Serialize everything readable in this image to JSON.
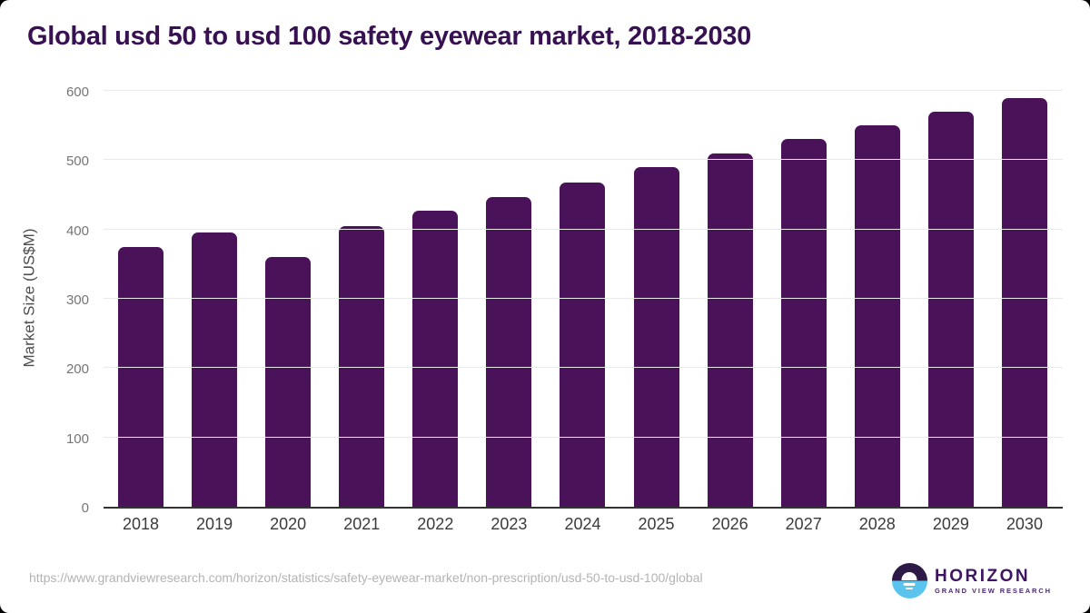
{
  "title": "Global usd 50 to usd 100 safety eyewear market, 2018-2030",
  "chart_data": {
    "type": "bar",
    "categories": [
      "2018",
      "2019",
      "2020",
      "2021",
      "2022",
      "2023",
      "2024",
      "2025",
      "2026",
      "2027",
      "2028",
      "2029",
      "2030"
    ],
    "values": [
      375,
      395,
      360,
      405,
      427,
      447,
      468,
      490,
      510,
      530,
      550,
      570,
      589
    ],
    "title": "Global usd 50 to usd 100 safety eyewear market, 2018-2030",
    "xlabel": "",
    "ylabel": "Market Size (US$M)",
    "ylim": [
      0,
      600
    ],
    "yticks": [
      0,
      100,
      200,
      300,
      400,
      500,
      600
    ],
    "grid": true,
    "legend": "none",
    "bar_color": "#4a1259"
  },
  "colors": {
    "title": "#371152",
    "bar": "#4a1259",
    "gridline": "#e9e9e9",
    "axis_line": "#333333",
    "logo_purple": "#2e1a47",
    "logo_blue": "#5bc4ee",
    "brand_text": "#3d1560"
  },
  "footer": {
    "source_url": "https://www.grandviewresearch.com/horizon/statistics/safety-eyewear-market/non-prescription/usd-50-to-usd-100/global",
    "logo": {
      "brand": "HORIZON",
      "tagline": "GRAND VIEW RESEARCH"
    }
  }
}
